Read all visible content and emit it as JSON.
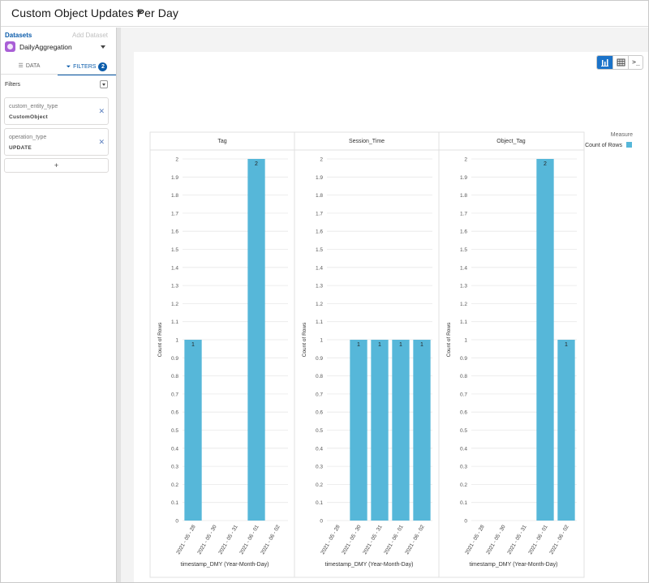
{
  "app": {
    "title": "Custom Object Updates Per Day"
  },
  "sidebar": {
    "datasets_label": "Datasets",
    "add_dataset_label": "Add Dataset",
    "dataset_name": "DailyAggregation",
    "tabs": [
      {
        "label": "DATA",
        "icon": "list-icon"
      },
      {
        "label": "FILTERS",
        "icon": "funnel-icon",
        "badge": "2"
      }
    ],
    "filters_heading": "Filters",
    "filters": [
      {
        "field": "custom_entity_type",
        "value": "CustomObject"
      },
      {
        "field": "operation_type",
        "value": "UPDATE"
      }
    ],
    "add_filter_label": "+"
  },
  "viz_toggle": {
    "chart_icon": "bar-chart-icon",
    "table_icon": "table-icon",
    "query_icon": "terminal-icon",
    "active": "chart"
  },
  "legend": {
    "title": "Measure",
    "items": [
      {
        "label": "Count of Rows",
        "color": "#56b7d9"
      }
    ]
  },
  "chart_data": {
    "type": "bar",
    "facets": [
      "Tag",
      "Session_Time",
      "Object_Tag"
    ],
    "categories": [
      "2021 - 05 - 28",
      "2021 - 05 - 30",
      "2021 - 05 - 31",
      "2021 - 06 - 01",
      "2021 - 06 - 02"
    ],
    "series": [
      {
        "name": "Count of Rows",
        "facet": "Tag",
        "values": [
          1,
          0,
          0,
          2,
          0
        ]
      },
      {
        "name": "Count of Rows",
        "facet": "Session_Time",
        "values": [
          0,
          1,
          1,
          1,
          1
        ]
      },
      {
        "name": "Count of Rows",
        "facet": "Object_Tag",
        "values": [
          0,
          0,
          0,
          2,
          1
        ]
      }
    ],
    "xlabel": "timestamp_DMY (Year-Month-Day)",
    "ylabel": "Count of Rows",
    "ylim": [
      0,
      2
    ],
    "yticks": [
      "0",
      "0.1",
      "0.2",
      "0.3",
      "0.4",
      "0.5",
      "0.6",
      "0.7",
      "0.8",
      "0.9",
      "1",
      "1.1",
      "1.2",
      "1.3",
      "1.4",
      "1.5",
      "1.6",
      "1.7",
      "1.8",
      "1.9",
      "2"
    ],
    "grid": true,
    "legend_position": "top-right",
    "bar_color": "#56b7d9"
  }
}
